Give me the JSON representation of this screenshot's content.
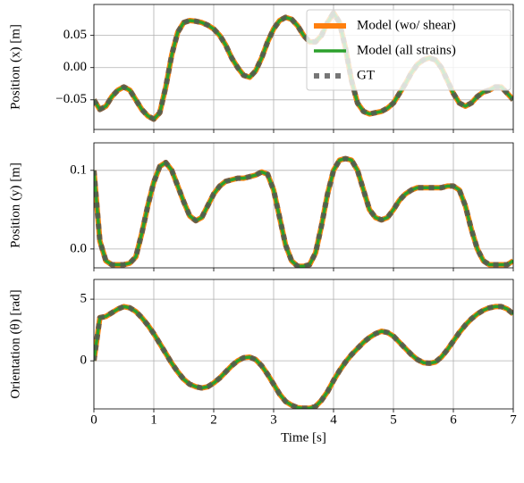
{
  "chart_data": [
    {
      "type": "line",
      "ylabel": "Position (x) [m]",
      "legend": "upper right",
      "grid": true,
      "xlim": [
        0,
        7
      ],
      "xticks": [
        0,
        1,
        2,
        3,
        4,
        5,
        6,
        7
      ],
      "ylim": [
        -0.096,
        0.098
      ],
      "yticks": [
        {
          "value": -0.05,
          "label": "−0.05"
        },
        {
          "value": 0,
          "label": "0.00"
        },
        {
          "value": 0.05,
          "label": "0.05"
        }
      ],
      "x": [
        0,
        0.1,
        0.2,
        0.3,
        0.4,
        0.5,
        0.6,
        0.7,
        0.8,
        0.9,
        1,
        1.1,
        1.2,
        1.3,
        1.4,
        1.5,
        1.6,
        1.7,
        1.8,
        1.9,
        2,
        2.1,
        2.2,
        2.3,
        2.4,
        2.5,
        2.6,
        2.7,
        2.8,
        2.9,
        3,
        3.1,
        3.2,
        3.3,
        3.4,
        3.5,
        3.6,
        3.7,
        3.8,
        3.9,
        4,
        4.1,
        4.2,
        4.3,
        4.4,
        4.5,
        4.6,
        4.7,
        4.8,
        4.9,
        5,
        5.1,
        5.2,
        5.3,
        5.4,
        5.5,
        5.6,
        5.7,
        5.8,
        5.9,
        6,
        6.1,
        6.2,
        6.3,
        6.4,
        6.5,
        6.6,
        6.7,
        6.8,
        6.9,
        7
      ],
      "series": [
        {
          "name": "Model (wo/ shear)",
          "color": "#ff7f0e",
          "style": "solid",
          "values": [
            -0.05,
            -0.065,
            -0.06,
            -0.045,
            -0.035,
            -0.03,
            -0.035,
            -0.05,
            -0.065,
            -0.075,
            -0.08,
            -0.07,
            -0.03,
            0.02,
            0.055,
            0.07,
            0.073,
            0.072,
            0.07,
            0.066,
            0.06,
            0.05,
            0.035,
            0.015,
            0,
            -0.012,
            -0.015,
            -0.005,
            0.015,
            0.04,
            0.06,
            0.073,
            0.078,
            0.075,
            0.065,
            0.05,
            0.04,
            0.04,
            0.05,
            0.07,
            0.085,
            0.07,
            0.03,
            -0.02,
            -0.055,
            -0.068,
            -0.072,
            -0.07,
            -0.068,
            -0.063,
            -0.055,
            -0.04,
            -0.025,
            -0.008,
            0.005,
            0.012,
            0.015,
            0.012,
            0,
            -0.02,
            -0.04,
            -0.055,
            -0.06,
            -0.055,
            -0.045,
            -0.038,
            -0.035,
            -0.03,
            -0.03,
            -0.04,
            -0.05
          ]
        },
        {
          "name": "Model (all strains)",
          "color": "#2ca02c",
          "style": "solid",
          "values": [
            -0.05,
            -0.065,
            -0.06,
            -0.045,
            -0.035,
            -0.03,
            -0.035,
            -0.05,
            -0.065,
            -0.075,
            -0.08,
            -0.07,
            -0.03,
            0.02,
            0.055,
            0.07,
            0.073,
            0.072,
            0.07,
            0.066,
            0.06,
            0.05,
            0.035,
            0.015,
            0,
            -0.012,
            -0.015,
            -0.005,
            0.015,
            0.04,
            0.06,
            0.073,
            0.078,
            0.075,
            0.065,
            0.05,
            0.04,
            0.04,
            0.05,
            0.07,
            0.085,
            0.07,
            0.03,
            -0.02,
            -0.055,
            -0.068,
            -0.072,
            -0.07,
            -0.068,
            -0.063,
            -0.055,
            -0.04,
            -0.025,
            -0.008,
            0.005,
            0.012,
            0.015,
            0.012,
            0,
            -0.02,
            -0.04,
            -0.055,
            -0.06,
            -0.055,
            -0.045,
            -0.038,
            -0.035,
            -0.03,
            -0.03,
            -0.04,
            -0.05
          ]
        },
        {
          "name": "GT",
          "color": "#555555",
          "style": "dotted",
          "values": [
            -0.05,
            -0.065,
            -0.06,
            -0.045,
            -0.035,
            -0.03,
            -0.035,
            -0.05,
            -0.065,
            -0.075,
            -0.08,
            -0.07,
            -0.03,
            0.02,
            0.055,
            0.07,
            0.073,
            0.072,
            0.07,
            0.066,
            0.06,
            0.05,
            0.035,
            0.015,
            0,
            -0.012,
            -0.015,
            -0.005,
            0.015,
            0.04,
            0.06,
            0.073,
            0.078,
            0.075,
            0.065,
            0.05,
            0.04,
            0.04,
            0.05,
            0.07,
            0.085,
            0.07,
            0.03,
            -0.02,
            -0.055,
            -0.068,
            -0.072,
            -0.07,
            -0.068,
            -0.063,
            -0.055,
            -0.04,
            -0.025,
            -0.008,
            0.005,
            0.012,
            0.015,
            0.012,
            0,
            -0.02,
            -0.04,
            -0.055,
            -0.06,
            -0.055,
            -0.045,
            -0.038,
            -0.035,
            -0.03,
            -0.03,
            -0.04,
            -0.05
          ]
        }
      ]
    },
    {
      "type": "line",
      "ylabel": "Position (y) [m]",
      "grid": true,
      "xlim": [
        0,
        7
      ],
      "xticks": [
        0,
        1,
        2,
        3,
        4,
        5,
        6,
        7
      ],
      "ylim": [
        -0.024,
        0.135
      ],
      "yticks": [
        {
          "value": 0,
          "label": "0.0"
        },
        0.1
      ],
      "x": [
        0,
        0.1,
        0.2,
        0.3,
        0.4,
        0.5,
        0.6,
        0.7,
        0.8,
        0.9,
        1,
        1.1,
        1.2,
        1.3,
        1.4,
        1.5,
        1.6,
        1.7,
        1.8,
        1.9,
        2,
        2.1,
        2.2,
        2.3,
        2.4,
        2.5,
        2.6,
        2.7,
        2.8,
        2.9,
        3,
        3.1,
        3.2,
        3.3,
        3.4,
        3.5,
        3.6,
        3.7,
        3.8,
        3.9,
        4,
        4.1,
        4.2,
        4.3,
        4.4,
        4.5,
        4.6,
        4.7,
        4.8,
        4.9,
        5,
        5.1,
        5.2,
        5.3,
        5.4,
        5.5,
        5.6,
        5.7,
        5.8,
        5.9,
        6,
        6.1,
        6.2,
        6.3,
        6.4,
        6.5,
        6.6,
        6.7,
        6.8,
        6.9,
        7
      ],
      "series": [
        {
          "name": "Model (wo/ shear)",
          "color": "#ff7f0e",
          "style": "solid",
          "values": [
            0.1,
            0.01,
            -0.015,
            -0.02,
            -0.02,
            -0.02,
            -0.018,
            -0.01,
            0.02,
            0.055,
            0.085,
            0.105,
            0.11,
            0.1,
            0.08,
            0.06,
            0.042,
            0.036,
            0.04,
            0.055,
            0.07,
            0.08,
            0.086,
            0.088,
            0.09,
            0.09,
            0.092,
            0.094,
            0.098,
            0.095,
            0.075,
            0.04,
            0.005,
            -0.015,
            -0.022,
            -0.022,
            -0.02,
            -0.005,
            0.03,
            0.07,
            0.1,
            0.113,
            0.115,
            0.113,
            0.1,
            0.075,
            0.05,
            0.04,
            0.037,
            0.04,
            0.05,
            0.062,
            0.07,
            0.075,
            0.078,
            0.078,
            0.078,
            0.078,
            0.078,
            0.08,
            0.08,
            0.075,
            0.055,
            0.025,
            0,
            -0.015,
            -0.02,
            -0.02,
            -0.02,
            -0.02,
            -0.015
          ]
        },
        {
          "name": "Model (all strains)",
          "color": "#2ca02c",
          "style": "solid",
          "values": [
            0.1,
            0.01,
            -0.015,
            -0.02,
            -0.02,
            -0.02,
            -0.018,
            -0.01,
            0.02,
            0.055,
            0.085,
            0.105,
            0.11,
            0.1,
            0.08,
            0.06,
            0.042,
            0.036,
            0.04,
            0.055,
            0.07,
            0.08,
            0.086,
            0.088,
            0.09,
            0.09,
            0.092,
            0.094,
            0.098,
            0.095,
            0.075,
            0.04,
            0.005,
            -0.015,
            -0.022,
            -0.022,
            -0.02,
            -0.005,
            0.03,
            0.07,
            0.1,
            0.113,
            0.115,
            0.113,
            0.1,
            0.075,
            0.05,
            0.04,
            0.037,
            0.04,
            0.05,
            0.062,
            0.07,
            0.075,
            0.078,
            0.078,
            0.078,
            0.078,
            0.078,
            0.08,
            0.08,
            0.075,
            0.055,
            0.025,
            0,
            -0.015,
            -0.02,
            -0.02,
            -0.02,
            -0.02,
            -0.015
          ]
        },
        {
          "name": "GT",
          "color": "#555555",
          "style": "dotted",
          "values": [
            0.1,
            0.01,
            -0.015,
            -0.02,
            -0.02,
            -0.02,
            -0.018,
            -0.01,
            0.02,
            0.055,
            0.085,
            0.105,
            0.11,
            0.1,
            0.08,
            0.06,
            0.042,
            0.036,
            0.04,
            0.055,
            0.07,
            0.08,
            0.086,
            0.088,
            0.09,
            0.09,
            0.092,
            0.094,
            0.098,
            0.095,
            0.075,
            0.04,
            0.005,
            -0.015,
            -0.022,
            -0.022,
            -0.02,
            -0.005,
            0.03,
            0.07,
            0.1,
            0.113,
            0.115,
            0.113,
            0.1,
            0.075,
            0.05,
            0.04,
            0.037,
            0.04,
            0.05,
            0.062,
            0.07,
            0.075,
            0.078,
            0.078,
            0.078,
            0.078,
            0.078,
            0.08,
            0.08,
            0.075,
            0.055,
            0.025,
            0,
            -0.015,
            -0.02,
            -0.02,
            -0.02,
            -0.02,
            -0.015
          ]
        }
      ]
    },
    {
      "type": "line",
      "ylabel": "Orientation (θ) [rad]",
      "xlabel": "Time [s]",
      "grid": true,
      "xlim": [
        0,
        7
      ],
      "xticks": [
        0,
        1,
        2,
        3,
        4,
        5,
        6,
        7
      ],
      "ylim": [
        -3.9,
        6.6
      ],
      "yticks": [
        0,
        5
      ],
      "x": [
        0,
        0.1,
        0.2,
        0.3,
        0.4,
        0.5,
        0.6,
        0.7,
        0.8,
        0.9,
        1,
        1.1,
        1.2,
        1.3,
        1.4,
        1.5,
        1.6,
        1.7,
        1.8,
        1.9,
        2,
        2.1,
        2.2,
        2.3,
        2.4,
        2.5,
        2.6,
        2.7,
        2.8,
        2.9,
        3,
        3.1,
        3.2,
        3.3,
        3.4,
        3.5,
        3.6,
        3.7,
        3.8,
        3.9,
        4,
        4.1,
        4.2,
        4.3,
        4.4,
        4.5,
        4.6,
        4.7,
        4.8,
        4.9,
        5,
        5.1,
        5.2,
        5.3,
        5.4,
        5.5,
        5.6,
        5.7,
        5.8,
        5.9,
        6,
        6.1,
        6.2,
        6.3,
        6.4,
        6.5,
        6.6,
        6.7,
        6.8,
        6.9,
        7
      ],
      "series": [
        {
          "name": "Model (wo/ shear)",
          "color": "#ff7f0e",
          "style": "solid",
          "values": [
            0,
            3.5,
            3.6,
            3.9,
            4.2,
            4.4,
            4.3,
            4,
            3.5,
            2.9,
            2.2,
            1.4,
            0.6,
            -0.2,
            -0.9,
            -1.5,
            -1.9,
            -2.1,
            -2.2,
            -2.1,
            -1.8,
            -1.4,
            -0.9,
            -0.4,
            0,
            0.25,
            0.3,
            0.1,
            -0.4,
            -1.1,
            -1.9,
            -2.7,
            -3.3,
            -3.6,
            -3.8,
            -3.85,
            -3.85,
            -3.7,
            -3.2,
            -2.5,
            -1.6,
            -0.8,
            -0.1,
            0.5,
            1,
            1.5,
            1.9,
            2.2,
            2.4,
            2.3,
            2,
            1.5,
            1,
            0.5,
            0.1,
            -0.15,
            -0.2,
            -0.1,
            0.3,
            0.9,
            1.6,
            2.3,
            2.9,
            3.4,
            3.8,
            4.1,
            4.3,
            4.4,
            4.4,
            4.2,
            3.8
          ]
        },
        {
          "name": "Model (all strains)",
          "color": "#2ca02c",
          "style": "solid",
          "values": [
            0,
            3.5,
            3.6,
            3.9,
            4.2,
            4.4,
            4.3,
            4,
            3.5,
            2.9,
            2.2,
            1.4,
            0.6,
            -0.2,
            -0.9,
            -1.5,
            -1.9,
            -2.1,
            -2.2,
            -2.1,
            -1.8,
            -1.4,
            -0.9,
            -0.4,
            0,
            0.25,
            0.3,
            0.1,
            -0.4,
            -1.1,
            -1.9,
            -2.7,
            -3.3,
            -3.6,
            -3.8,
            -3.85,
            -3.85,
            -3.7,
            -3.2,
            -2.5,
            -1.6,
            -0.8,
            -0.1,
            0.5,
            1,
            1.5,
            1.9,
            2.2,
            2.4,
            2.3,
            2,
            1.5,
            1,
            0.5,
            0.1,
            -0.15,
            -0.2,
            -0.1,
            0.3,
            0.9,
            1.6,
            2.3,
            2.9,
            3.4,
            3.8,
            4.1,
            4.3,
            4.4,
            4.4,
            4.2,
            3.8
          ]
        },
        {
          "name": "GT",
          "color": "#555555",
          "style": "dotted",
          "values": [
            0,
            3.5,
            3.6,
            3.9,
            4.2,
            4.4,
            4.3,
            4,
            3.5,
            2.9,
            2.2,
            1.4,
            0.6,
            -0.2,
            -0.9,
            -1.5,
            -1.9,
            -2.1,
            -2.2,
            -2.1,
            -1.8,
            -1.4,
            -0.9,
            -0.4,
            0,
            0.25,
            0.3,
            0.1,
            -0.4,
            -1.1,
            -1.9,
            -2.7,
            -3.3,
            -3.6,
            -3.8,
            -3.85,
            -3.85,
            -3.7,
            -3.2,
            -2.5,
            -1.6,
            -0.8,
            -0.1,
            0.5,
            1,
            1.5,
            1.9,
            2.2,
            2.4,
            2.3,
            2,
            1.5,
            1,
            0.5,
            0.1,
            -0.15,
            -0.2,
            -0.1,
            0.3,
            0.9,
            1.6,
            2.3,
            2.9,
            3.4,
            3.8,
            4.1,
            4.3,
            4.4,
            4.4,
            4.2,
            3.8
          ]
        }
      ]
    }
  ]
}
